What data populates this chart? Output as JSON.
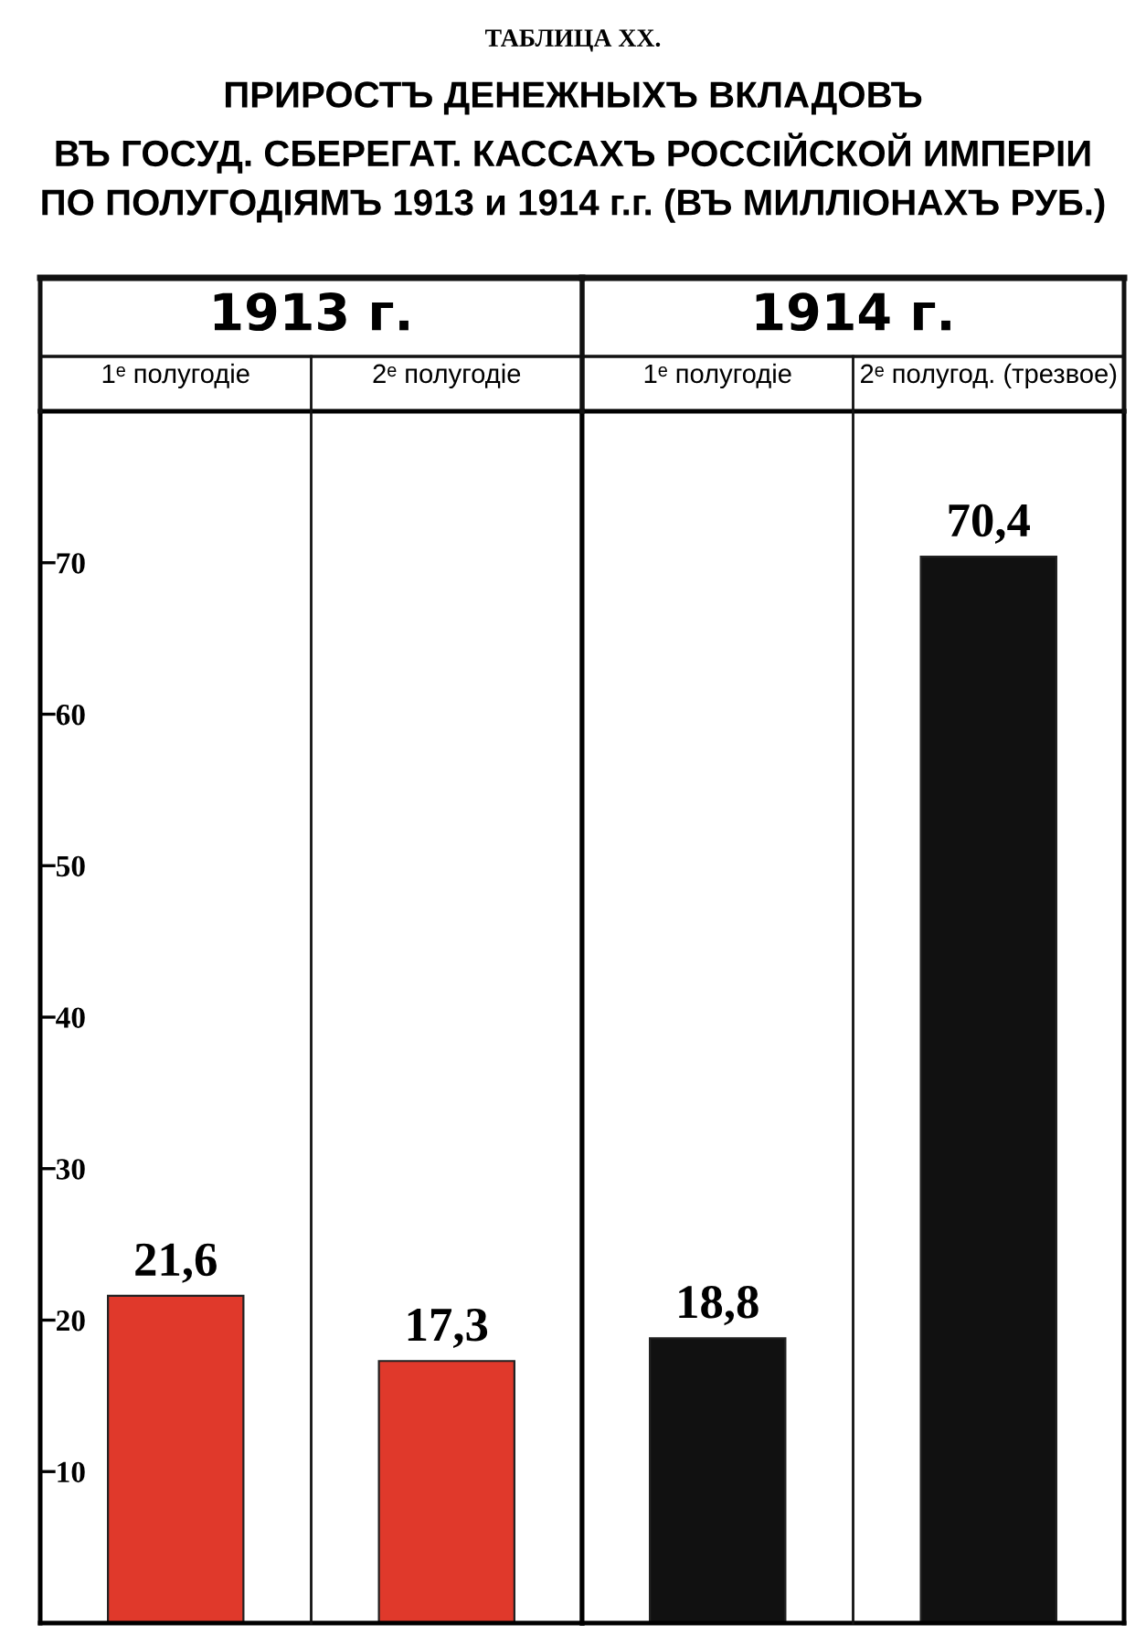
{
  "chart_data": [
    {
      "type": "bar",
      "title": "1913 г.",
      "annotations": [
        "ТАБЛИЦА XX.",
        "ПРИРОСТЪ ДЕНЕЖНЫХЪ ВКЛАДОВЪ\nВЪ ГОСУД. СБЕРЕГАТ. КАССАХЪ РОССІЙСКОЙ ИМПЕРІИ\nПО ПОЛУГОДІЯМЪ 1913 и 1914 г.г. (ВЪ МИЛЛІОНАХЪ РУБ.)"
      ],
      "categories": [
        "1ᵉ полугодіе",
        "2ᵉ полугодіе"
      ],
      "values": [
        21.6,
        17.3
      ],
      "colors": [
        "#e0392b",
        "#e0392b"
      ],
      "value_labels": [
        "21,6",
        "17,3"
      ],
      "ylim": [
        0,
        80
      ],
      "yticks": [
        10,
        20,
        30,
        40,
        50,
        60,
        70
      ]
    },
    {
      "type": "bar",
      "title": "1914 г.",
      "categories": [
        "1ᵉ полугодіе",
        "2ᵉ полугод. (трезвое)"
      ],
      "values": [
        18.8,
        70.4
      ],
      "colors": [
        "#111111",
        "#111111"
      ],
      "value_labels": [
        "18,8",
        "70,4"
      ],
      "ylim": [
        0,
        80
      ],
      "tick_labels": "x"
    }
  ]
}
